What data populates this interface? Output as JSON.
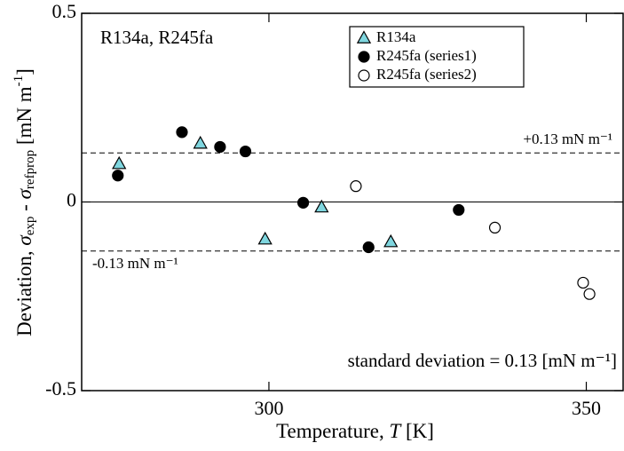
{
  "chart_data": {
    "type": "scatter",
    "xlabel": [
      "Temperature,  ",
      "T",
      "  [K]"
    ],
    "ylabel": [
      "Deviation,  ",
      "σ",
      "exp",
      " - ",
      "σ",
      "refprop",
      " [mN m",
      "-1",
      "]"
    ],
    "xlim": [
      270.5,
      355.8
    ],
    "xticks": [
      300,
      350
    ],
    "ylim": [
      -0.5,
      0.5
    ],
    "yticks": [
      -0.5,
      0,
      0.5
    ],
    "hlines": [
      {
        "value": 0,
        "style": "solid"
      },
      {
        "value": 0.13,
        "style": "dashed"
      },
      {
        "value": -0.13,
        "style": "dashed"
      }
    ],
    "annotations": [
      "R134a, R245fa",
      "+0.13 mN m⁻¹",
      "-0.13 mN m⁻¹",
      "standard deviation = 0.13 [mN m⁻¹]"
    ],
    "legend": "upper right",
    "series": [
      {
        "name": "R134a",
        "marker": "triangle",
        "color": "#7fd6df",
        "edgecolor": "#000000",
        "x": [
          276.4,
          289.2,
          299.4,
          308.3,
          319.2
        ],
        "values": [
          0.101,
          0.155,
          -0.099,
          -0.014,
          -0.106
        ]
      },
      {
        "name": "R245fa (series1)",
        "marker": "circle",
        "color": "#000000",
        "edgecolor": "#000000",
        "x": [
          276.2,
          286.3,
          292.3,
          296.3,
          305.4,
          315.7,
          329.9
        ],
        "values": [
          0.07,
          0.185,
          0.146,
          0.134,
          -0.002,
          -0.12,
          -0.021
        ]
      },
      {
        "name": "R245fa (series2)",
        "marker": "circle",
        "color": "#ffffff",
        "edgecolor": "#000000",
        "x": [
          313.7,
          335.6,
          349.5,
          350.5
        ],
        "values": [
          0.042,
          -0.068,
          -0.214,
          -0.244
        ]
      }
    ]
  }
}
